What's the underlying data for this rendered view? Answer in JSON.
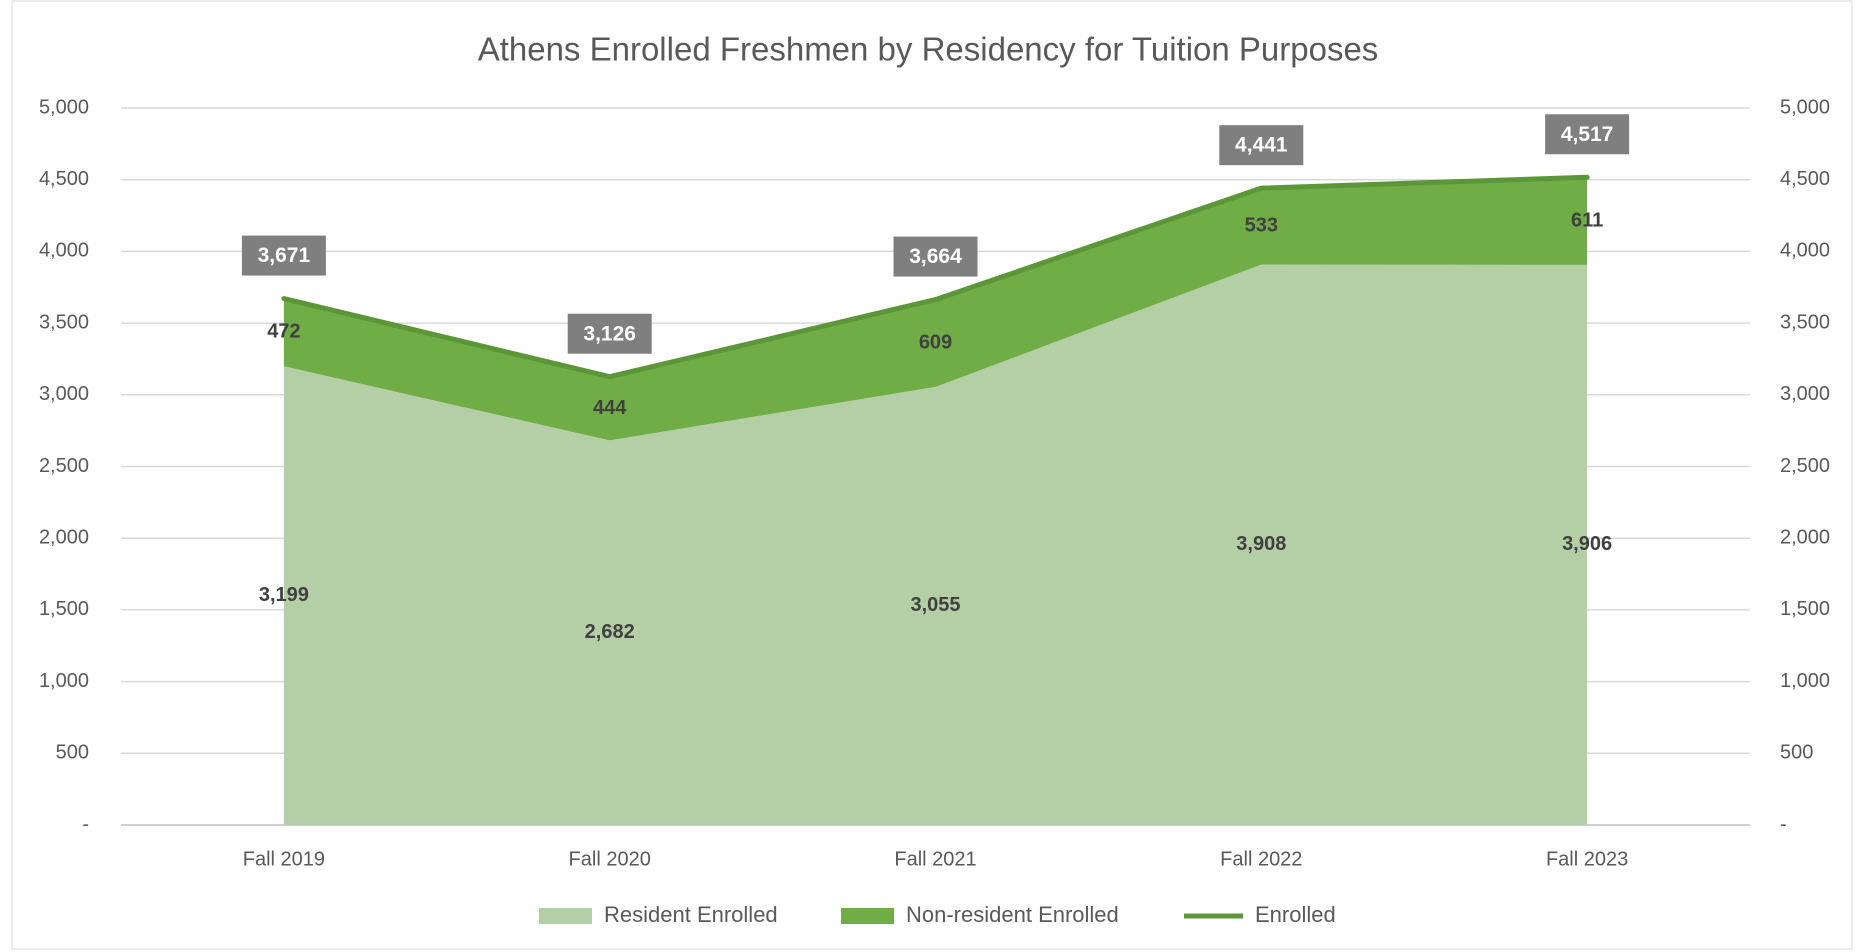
{
  "chart_data": {
    "type": "area",
    "stacked": true,
    "title": "Athens Enrolled Freshmen by Residency for Tuition Purposes",
    "categories": [
      "Fall 2019",
      "Fall 2020",
      "Fall 2021",
      "Fall 2022",
      "Fall 2023"
    ],
    "series": [
      {
        "name": "Resident Enrolled",
        "type": "area",
        "color": "#b4cfa5",
        "values": [
          3199,
          2682,
          3055,
          3908,
          3906
        ],
        "value_labels": [
          "3,199",
          "2,682",
          "3,055",
          "3,908",
          "3,906"
        ]
      },
      {
        "name": "Non-resident Enrolled",
        "type": "area",
        "color": "#70ad47",
        "values": [
          472,
          444,
          609,
          533,
          611
        ],
        "value_labels": [
          "472",
          "444",
          "609",
          "533",
          "611"
        ]
      },
      {
        "name": "Enrolled",
        "type": "line",
        "axis": "y2",
        "color": "#5b9639",
        "values": [
          3671,
          3126,
          3664,
          4441,
          4517
        ],
        "value_labels": [
          "3,671",
          "3,126",
          "3,664",
          "4,441",
          "4,517"
        ]
      }
    ],
    "ylim": [
      0,
      5000
    ],
    "yticks": [
      {
        "value": 0,
        "label": "-"
      },
      500,
      {
        "value": 1000,
        "label": "1,000"
      },
      {
        "value": 1500,
        "label": "1,500"
      },
      {
        "value": 2000,
        "label": "2,000"
      },
      {
        "value": 2500,
        "label": "2,500"
      },
      {
        "value": 3000,
        "label": "3,000"
      },
      {
        "value": 3500,
        "label": "3,500"
      },
      {
        "value": 4000,
        "label": "4,000"
      },
      {
        "value": 4500,
        "label": "4,500"
      },
      {
        "value": 5000,
        "label": "5,000"
      }
    ],
    "y2lim": [
      0,
      5000
    ],
    "y2ticks": [
      {
        "value": 0,
        "label": "-"
      },
      500,
      {
        "value": 1000,
        "label": "1,000"
      },
      {
        "value": 1500,
        "label": "1,500"
      },
      {
        "value": 2000,
        "label": "2,000"
      },
      {
        "value": 2500,
        "label": "2,500"
      },
      {
        "value": 3000,
        "label": "3,000"
      },
      {
        "value": 3500,
        "label": "3,500"
      },
      {
        "value": 4000,
        "label": "4,000"
      },
      {
        "value": 4500,
        "label": "4,500"
      },
      {
        "value": 5000,
        "label": "5,000"
      }
    ],
    "grid": true,
    "legend": "bottom"
  }
}
